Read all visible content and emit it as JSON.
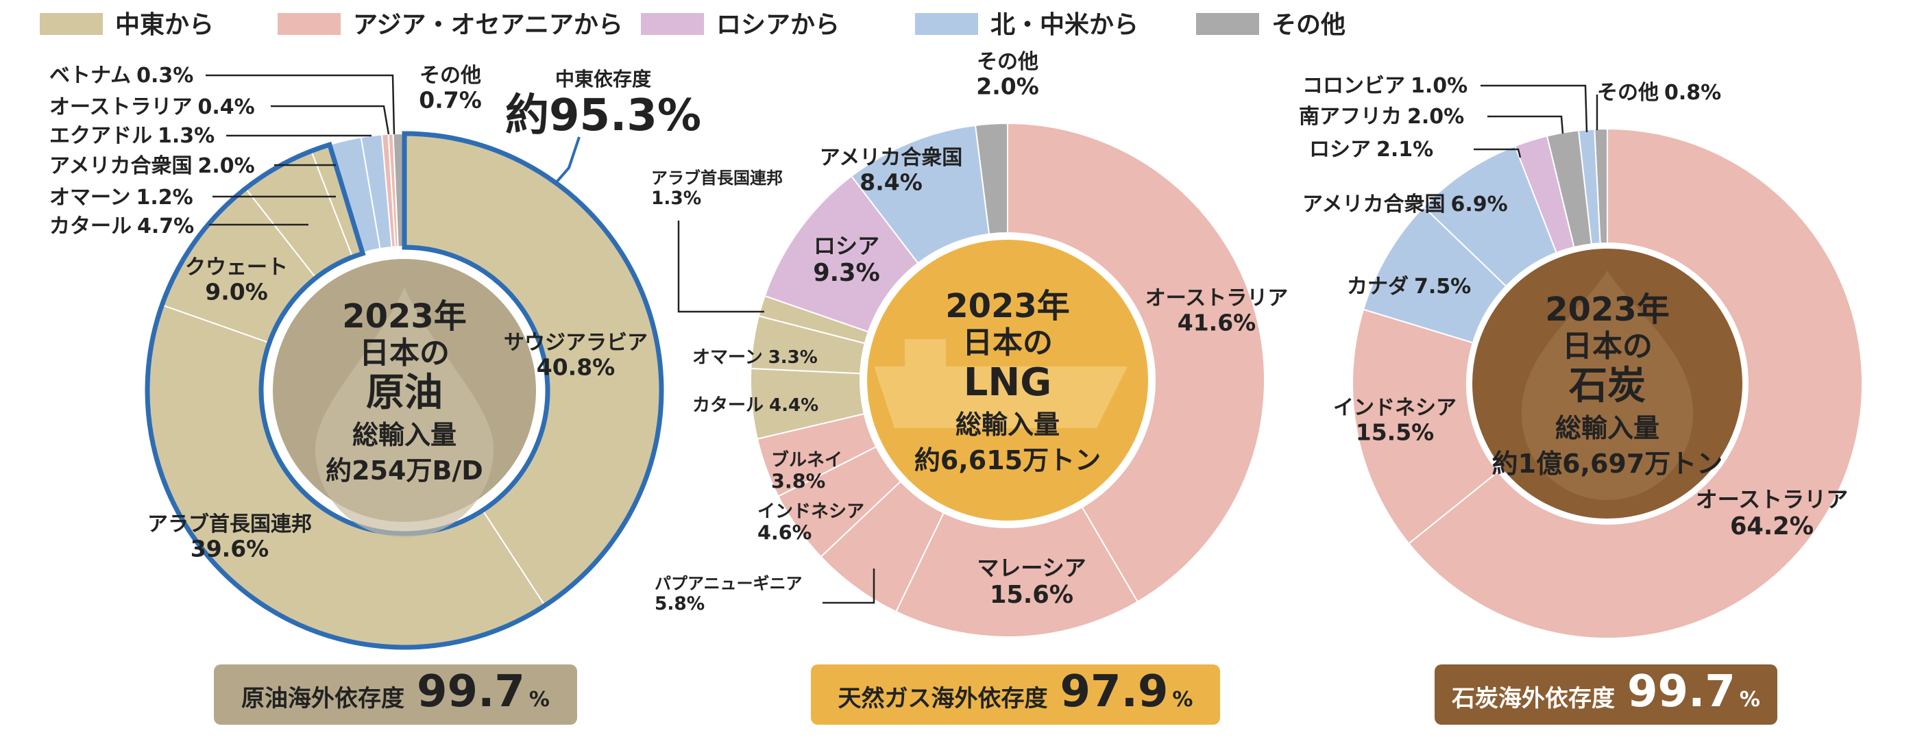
{
  "legend": [
    {
      "label": "中東から",
      "color": "#d3c7a0"
    },
    {
      "label": "アジア・オセアニアから",
      "color": "#ebbab2"
    },
    {
      "label": "ロシアから",
      "color": "#dbbad9"
    },
    {
      "label": "北・中米から",
      "color": "#b2c9e6"
    },
    {
      "label": "その他",
      "color": "#aaaaaa"
    }
  ],
  "colors": {
    "oil_center": "#b5a88a",
    "lng_center": "#ecb448",
    "coal_center": "#8b5e34",
    "middle_east_outline": "#2e6db4",
    "oil_badge": "#b5a88a",
    "lng_badge": "#ecb448",
    "coal_badge": "#8b5e34"
  },
  "chart_data": [
    {
      "type": "pie",
      "center": {
        "year": "2023年",
        "subject": "日本の",
        "name": "原油",
        "metric": "総輸入量",
        "amount": "約254万B/D"
      },
      "dependency": {
        "label": "原油海外依存度",
        "value": "99.7",
        "unit": "%"
      },
      "middle_east": {
        "label": "中東依存度",
        "value": "約95.3%"
      },
      "slices": [
        {
          "name": "サウジアラビア",
          "value": 40.8,
          "region": "中東から"
        },
        {
          "name": "アラブ首長国連邦",
          "value": 39.6,
          "region": "中東から"
        },
        {
          "name": "クウェート",
          "value": 9.0,
          "region": "中東から"
        },
        {
          "name": "カタール",
          "value": 4.7,
          "region": "中東から"
        },
        {
          "name": "オマーン",
          "value": 1.2,
          "region": "中東から"
        },
        {
          "name": "アメリカ合衆国",
          "value": 2.0,
          "region": "北・中米から"
        },
        {
          "name": "エクアドル",
          "value": 1.3,
          "region": "北・中米から"
        },
        {
          "name": "オーストラリア",
          "value": 0.4,
          "region": "アジア・オセアニアから"
        },
        {
          "name": "ベトナム",
          "value": 0.3,
          "region": "アジア・オセアニアから"
        },
        {
          "name": "その他",
          "value": 0.7,
          "region": "その他"
        }
      ]
    },
    {
      "type": "pie",
      "center": {
        "year": "2023年",
        "subject": "日本の",
        "name": "LNG",
        "metric": "総輸入量",
        "amount": "約6,615万トン"
      },
      "dependency": {
        "label": "天然ガス海外依存度",
        "value": "97.9",
        "unit": "%"
      },
      "slices": [
        {
          "name": "オーストラリア",
          "value": 41.6,
          "region": "アジア・オセアニアから"
        },
        {
          "name": "マレーシア",
          "value": 15.6,
          "region": "アジア・オセアニアから"
        },
        {
          "name": "パプアニューギニア",
          "value": 5.8,
          "region": "アジア・オセアニアから"
        },
        {
          "name": "インドネシア",
          "value": 4.6,
          "region": "アジア・オセアニアから"
        },
        {
          "name": "ブルネイ",
          "value": 3.8,
          "region": "アジア・オセアニアから"
        },
        {
          "name": "カタール",
          "value": 4.4,
          "region": "中東から"
        },
        {
          "name": "オマーン",
          "value": 3.3,
          "region": "中東から"
        },
        {
          "name": "アラブ首長国連邦",
          "value": 1.3,
          "region": "中東から"
        },
        {
          "name": "ロシア",
          "value": 9.3,
          "region": "ロシアから"
        },
        {
          "name": "アメリカ合衆国",
          "value": 8.4,
          "region": "北・中米から"
        },
        {
          "name": "その他",
          "value": 2.0,
          "region": "その他"
        }
      ]
    },
    {
      "type": "pie",
      "center": {
        "year": "2023年",
        "subject": "日本の",
        "name": "石炭",
        "metric": "総輸入量",
        "amount": "約1億6,697万トン"
      },
      "dependency": {
        "label": "石炭海外依存度",
        "value": "99.7",
        "unit": "%"
      },
      "slices": [
        {
          "name": "オーストラリア",
          "value": 64.2,
          "region": "アジア・オセアニアから"
        },
        {
          "name": "インドネシア",
          "value": 15.5,
          "region": "アジア・オセアニアから"
        },
        {
          "name": "カナダ",
          "value": 7.5,
          "region": "北・中米から"
        },
        {
          "name": "アメリカ合衆国",
          "value": 6.9,
          "region": "北・中米から"
        },
        {
          "name": "ロシア",
          "value": 2.1,
          "region": "ロシアから"
        },
        {
          "name": "南アフリカ",
          "value": 2.0,
          "region": "その他"
        },
        {
          "name": "コロンビア",
          "value": 1.0,
          "region": "北・中米から"
        },
        {
          "name": "その他",
          "value": 0.8,
          "region": "その他"
        }
      ]
    }
  ]
}
